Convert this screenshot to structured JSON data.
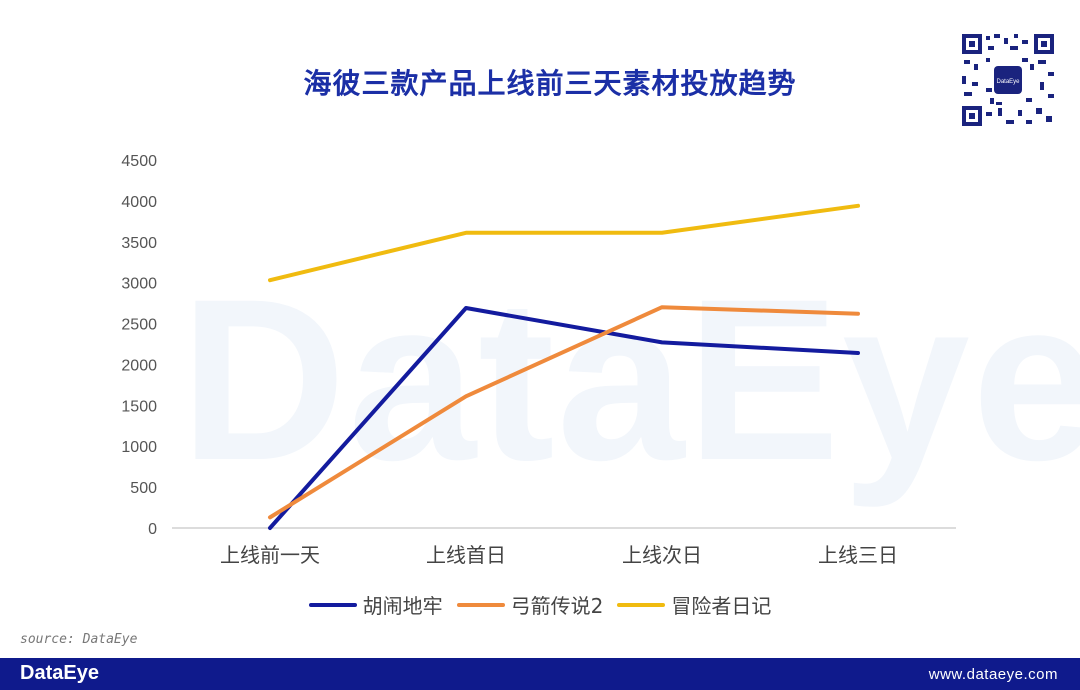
{
  "title": "海彼三款产品上线前三天素材投放趋势",
  "source_text": "source: DataEye",
  "footer": {
    "logo": "DataEye",
    "url": "www.dataeye.com"
  },
  "watermark_text": "DataEye",
  "qr": {
    "center_label": "DataEye"
  },
  "colors": {
    "title": "#1b2fa6",
    "footer_bg": "#0f1a8c"
  },
  "chart_data": {
    "type": "line",
    "categories": [
      "上线前一天",
      "上线首日",
      "上线次日",
      "上线三日"
    ],
    "ylim": [
      0,
      4500
    ],
    "yticks": [
      0,
      500,
      1000,
      1500,
      2000,
      2500,
      3000,
      3500,
      4000,
      4500
    ],
    "grid": false,
    "legend_position": "bottom",
    "series": [
      {
        "name": "胡闹地牢",
        "color": "#131b9e",
        "values": [
          0,
          2690,
          2270,
          2140
        ]
      },
      {
        "name": "弓箭传说2",
        "color": "#ef8a3c",
        "values": [
          130,
          1610,
          2700,
          2620
        ]
      },
      {
        "name": "冒险者日记",
        "color": "#f0bb10",
        "values": [
          3030,
          3610,
          3610,
          3940
        ]
      }
    ]
  }
}
